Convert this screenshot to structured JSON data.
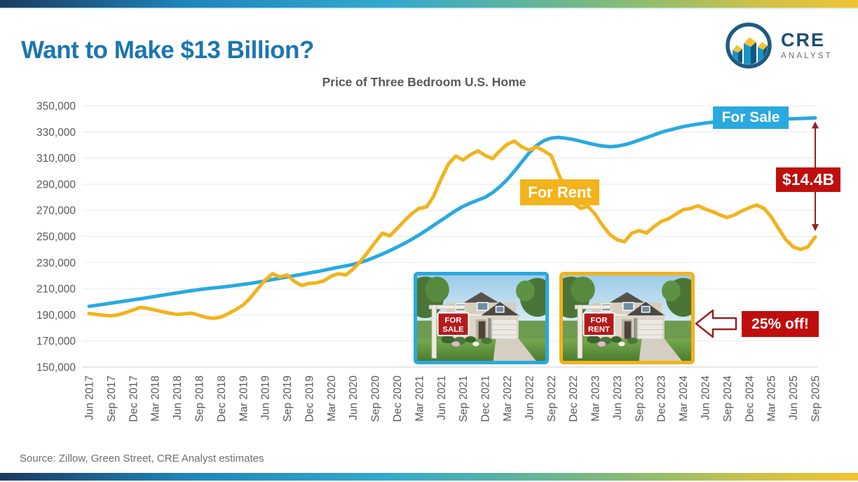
{
  "header": {
    "title": "Want to Make $13 Billion?",
    "logo": {
      "name": "CRE",
      "sub": "ANALYST"
    }
  },
  "chart_data": {
    "type": "line",
    "title": "Price of Three Bedroom U.S. Home",
    "xlabel": "",
    "ylabel": "",
    "x_start": "Jun 2017",
    "x_end": "Sep 2025",
    "x_frequency": "monthly",
    "x_tick_month_step": 3,
    "grid": true,
    "legend": "inline-labels",
    "y_min": 150000,
    "y_max": 350000,
    "y_ticks": [
      {
        "value": 350000,
        "label": "350,000"
      },
      {
        "value": 330000,
        "label": "330,000"
      },
      {
        "value": 310000,
        "label": "310,000"
      },
      {
        "value": 290000,
        "label": "290,000"
      },
      {
        "value": 270000,
        "label": "270,000"
      },
      {
        "value": 250000,
        "label": "250,000"
      },
      {
        "value": 230000,
        "label": "230,000"
      },
      {
        "value": 210000,
        "label": "210,000"
      },
      {
        "value": 190000,
        "label": "190,000"
      },
      {
        "value": 170000,
        "label": "170,000"
      },
      {
        "value": 150000,
        "label": "150,000"
      }
    ],
    "x_ticks": [
      "Jun 2017",
      "Sep 2017",
      "Dec 2017",
      "Mar 2018",
      "Jun 2018",
      "Sep 2018",
      "Dec 2018",
      "Mar 2019",
      "Jun 2019",
      "Sep 2019",
      "Dec 2019",
      "Mar 2020",
      "Jun 2020",
      "Sep 2020",
      "Dec 2020",
      "Mar 2021",
      "Jun 2021",
      "Sep 2021",
      "Dec 2021",
      "Mar 2022",
      "Jun 2022",
      "Sep 2022",
      "Dec 2022",
      "Mar 2023",
      "Jun 2023",
      "Sep 2023",
      "Dec 2023",
      "Mar 2024",
      "Jun 2024",
      "Sep 2024",
      "Dec 2024",
      "Mar 2025",
      "Jun 2025",
      "Sep 2025"
    ],
    "series": [
      {
        "name": "For Sale",
        "color": "#29A9E0",
        "values": [
          196500,
          197300,
          198100,
          199000,
          199800,
          200600,
          201500,
          202300,
          203200,
          204100,
          205000,
          205900,
          206800,
          207700,
          208500,
          209300,
          210000,
          210600,
          211200,
          211800,
          212500,
          213300,
          214100,
          215000,
          216000,
          217000,
          218000,
          219000,
          220000,
          221000,
          222000,
          223000,
          224100,
          225300,
          226400,
          227400,
          228600,
          230100,
          232000,
          234200,
          236600,
          239100,
          241800,
          244700,
          247800,
          251200,
          254800,
          258500,
          262300,
          266100,
          269800,
          273000,
          275600,
          277800,
          280000,
          283500,
          288000,
          293500,
          300000,
          307000,
          314000,
          319500,
          323300,
          325300,
          325800,
          325200,
          324200,
          322900,
          321500,
          320200,
          319200,
          318700,
          319100,
          320200,
          321800,
          323700,
          325700,
          327700,
          329700,
          331300,
          332700,
          334000,
          335100,
          336000,
          336800,
          337400,
          337900,
          338300,
          338600,
          338900,
          339100,
          339300,
          339500,
          339700,
          339900,
          340000,
          340100,
          340300,
          340500,
          340800
        ]
      },
      {
        "name": "For Rent",
        "color": "#F2B31C",
        "values": [
          191000,
          190300,
          189700,
          189300,
          190000,
          191700,
          193700,
          195800,
          194900,
          193700,
          192400,
          191300,
          190300,
          190800,
          191300,
          189700,
          188000,
          187300,
          188300,
          191000,
          194000,
          197500,
          203000,
          210000,
          216500,
          221500,
          219000,
          220500,
          215500,
          212500,
          214000,
          214500,
          216000,
          219500,
          221500,
          220500,
          225000,
          231000,
          238000,
          245500,
          252500,
          250500,
          256000,
          262000,
          267500,
          271500,
          272500,
          281000,
          294000,
          305500,
          311500,
          308500,
          312500,
          315500,
          312000,
          309500,
          315500,
          320500,
          323000,
          318500,
          316000,
          318500,
          315500,
          312000,
          298000,
          285000,
          276000,
          271500,
          273000,
          267000,
          258500,
          251500,
          247500,
          246000,
          252500,
          254500,
          252500,
          257500,
          261500,
          263500,
          267000,
          270500,
          271500,
          273500,
          271000,
          269000,
          266500,
          264500,
          266500,
          269500,
          272000,
          274000,
          271500,
          265000,
          256000,
          247500,
          242000,
          240000,
          242000,
          249500
        ]
      }
    ]
  },
  "annotations": {
    "for_sale_label": "For Sale",
    "for_rent_label": "For Rent",
    "difference_badge": "$14.4B",
    "difference_arrow": {
      "month_index": 99,
      "from_value": 338000,
      "to_value": 254000,
      "color": "#9B1F1F"
    },
    "discount_badge": "25% off!"
  },
  "houses": {
    "sale": {
      "sign_line1": "FOR",
      "sign_line2": "SALE",
      "border_color": "#29A9E0"
    },
    "rent": {
      "sign_line1": "FOR",
      "sign_line2": "RENT",
      "border_color": "#F2B31C"
    }
  },
  "footer": {
    "source": "Source: Zillow, Green Street, CRE Analyst estimates"
  },
  "colors": {
    "title_blue": "#1B76B0",
    "sale_blue": "#29A9E0",
    "rent_gold": "#F2B31C",
    "badge_red": "#C00E0E",
    "arrow_maroon": "#9B1F1F",
    "axis_gray": "#595959"
  }
}
